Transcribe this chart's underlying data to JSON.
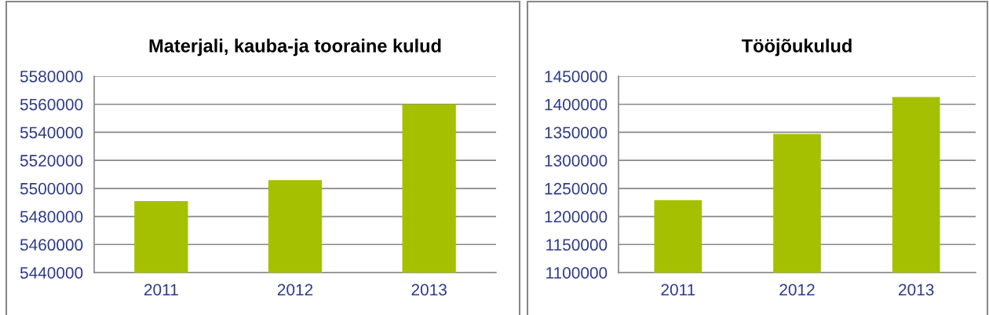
{
  "chart_data": [
    {
      "type": "bar",
      "title": "Materjali, kauba-ja tooraine kulud",
      "categories": [
        "2011",
        "2012",
        "2013"
      ],
      "values": [
        5491000,
        5506000,
        5560000
      ],
      "color": "#a5c000",
      "ylim": [
        5440000,
        5580000
      ],
      "yticks": [
        5440000,
        5460000,
        5480000,
        5500000,
        5520000,
        5540000,
        5560000,
        5580000
      ],
      "grid": "y"
    },
    {
      "type": "bar",
      "title": "Tööjõukulud",
      "categories": [
        "2011",
        "2012",
        "2013"
      ],
      "values": [
        1229000,
        1347000,
        1413000
      ],
      "color": "#a5c000",
      "ylim": [
        1100000,
        1450000
      ],
      "yticks": [
        1100000,
        1150000,
        1200000,
        1250000,
        1300000,
        1350000,
        1400000,
        1450000
      ],
      "grid": "y"
    }
  ]
}
